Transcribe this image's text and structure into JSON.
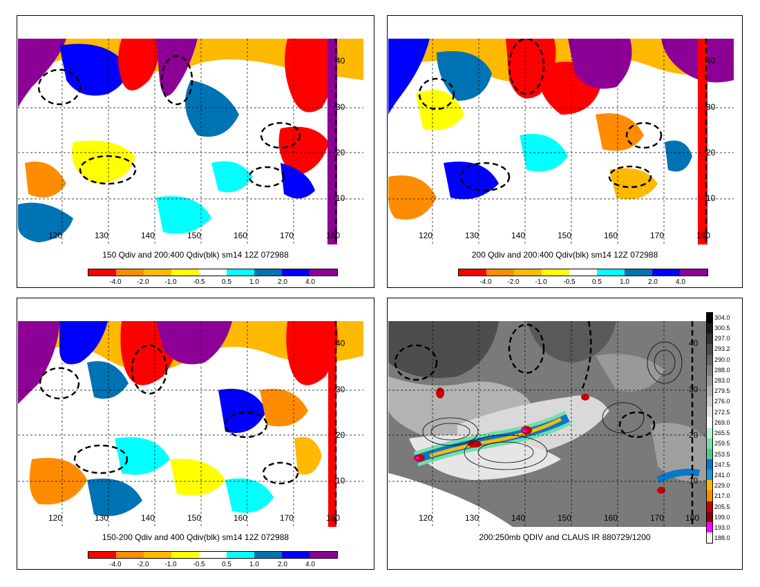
{
  "panels": [
    {
      "title": "150 Qdiv and 200:400 Qdiv(blk) sm14 12Z 072988",
      "colorbar": {
        "colors": [
          "#ff0000",
          "#ff8c00",
          "#ffb900",
          "#ffff00",
          "#ffffff",
          "#00ffff",
          "#0073b4",
          "#0000ff",
          "#8c0096"
        ],
        "labels": [
          "-4.0",
          "-2.0",
          "-1.0",
          "-0.5",
          "0.5",
          "1.0",
          "2.0",
          "4.0"
        ]
      },
      "lon_labels": [
        "120",
        "130",
        "140",
        "150",
        "160",
        "170",
        "180"
      ],
      "lat_labels": [
        "40",
        "30",
        "20",
        "10"
      ]
    },
    {
      "title": "200 Qdiv and 200:400 Qdiv(blk) sm14 12Z 072988",
      "colorbar": {
        "colors": [
          "#ff0000",
          "#ff8c00",
          "#ffb900",
          "#ffff00",
          "#ffffff",
          "#00ffff",
          "#0073b4",
          "#0000ff",
          "#8c0096"
        ],
        "labels": [
          "-4.0",
          "-2.0",
          "-1.0",
          "-0.5",
          "0.5",
          "1.0",
          "2.0",
          "4.0"
        ]
      },
      "lon_labels": [
        "120",
        "130",
        "140",
        "150",
        "160",
        "170",
        "180"
      ],
      "lat_labels": [
        "40",
        "30",
        "20",
        "10"
      ]
    },
    {
      "title": "150-200 Qdiv and 400 Qdiv(blk) sm14 12Z 072988",
      "colorbar": {
        "colors": [
          "#ff0000",
          "#ff8c00",
          "#ffb900",
          "#ffff00",
          "#ffffff",
          "#00ffff",
          "#0073b4",
          "#0000ff",
          "#8c0096"
        ],
        "labels": [
          "-4.0",
          "-2.0",
          "-1.0",
          "-0.5",
          "0.5",
          "1.0",
          "2.0",
          "4.0"
        ]
      },
      "lon_labels": [
        "120",
        "130",
        "140",
        "150",
        "160",
        "170",
        "180"
      ],
      "lat_labels": [
        "40",
        "30",
        "20",
        "10"
      ]
    },
    {
      "title": "200:250mb QDIV and CLAUS IR 880729/1200",
      "ir_colorbar": {
        "colors": [
          "#000000",
          "#1a1a1a",
          "#333333",
          "#4d4d4d",
          "#666666",
          "#808080",
          "#999999",
          "#b3b3b3",
          "#cccccc",
          "#e6e6e6",
          "#ffffff",
          "#b4f0d2",
          "#78dcaa",
          "#50c88c",
          "#0a78c8",
          "#1e96dc",
          "#ffb900",
          "#ff8c00",
          "#c80000",
          "#8b0000",
          "#ff00ff",
          "#ffffff"
        ],
        "labels": [
          "304.0",
          "300.5",
          "297.0",
          "293.2",
          "290.0",
          "288.0",
          "283.0",
          "279.5",
          "276.0",
          "272.5",
          "269.0",
          "265.5",
          "259.5",
          "253.5",
          "247.5",
          "241.0",
          "229.0",
          "217.0",
          "205.5",
          "199.0",
          "193.0",
          "188.0"
        ]
      },
      "lon_labels": [
        "120",
        "130",
        "140",
        "150",
        "160",
        "170",
        "180"
      ],
      "lat_labels": [
        "40",
        "30",
        "20",
        "10"
      ]
    }
  ]
}
